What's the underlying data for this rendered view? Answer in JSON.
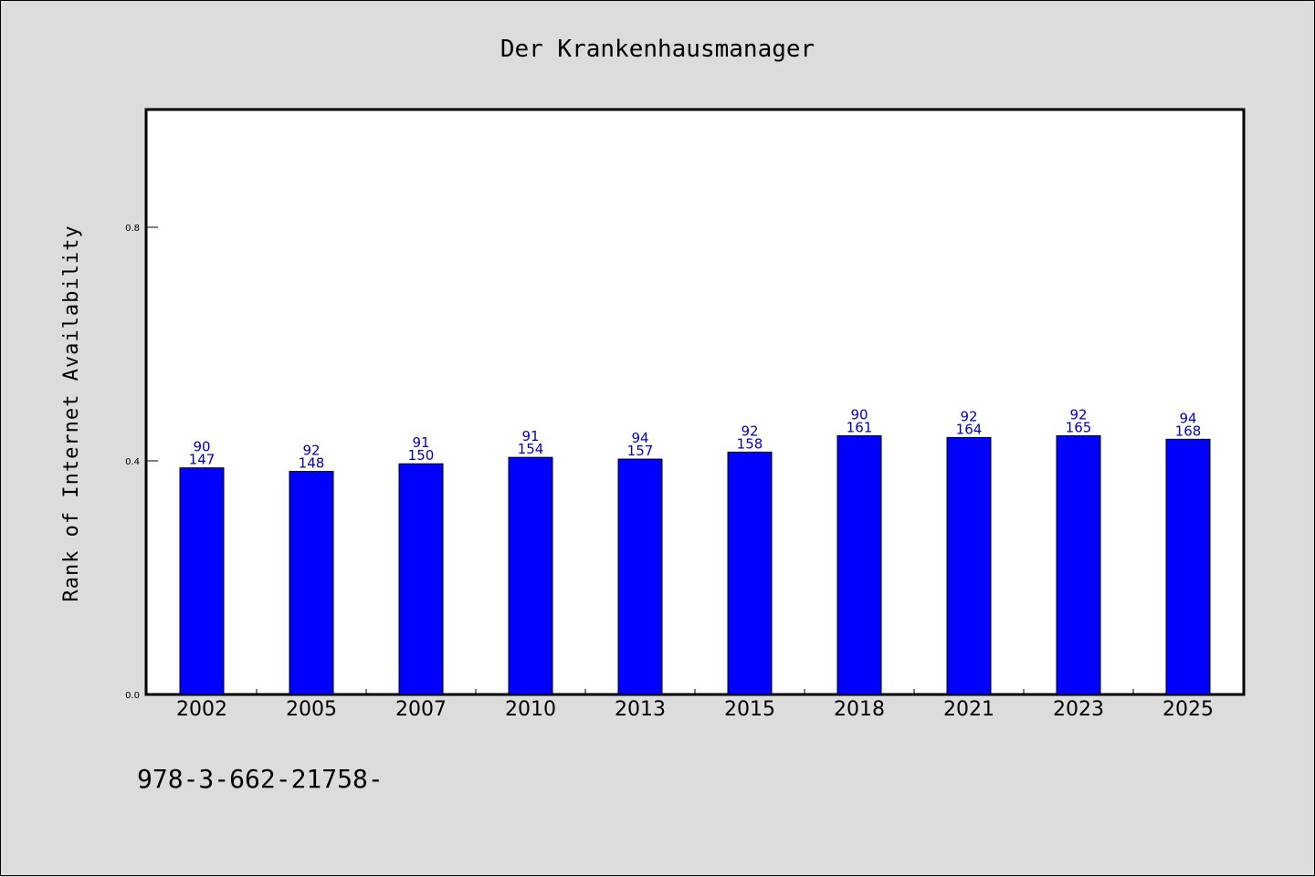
{
  "chart_data": {
    "type": "bar",
    "title": "Der Krankenhausmanager",
    "xlabel": "",
    "ylabel": "Rank of Internet Availability",
    "ylim": [
      0,
      1.0
    ],
    "yticks": [
      0.0,
      0.4,
      0.8
    ],
    "ytick_labels": [
      "0.0",
      "0.4",
      "0.8"
    ],
    "categories": [
      "2002",
      "2005",
      "2007",
      "2010",
      "2013",
      "2015",
      "2018",
      "2021",
      "2023",
      "2025"
    ],
    "values": [
      0.388,
      0.382,
      0.395,
      0.406,
      0.403,
      0.415,
      0.443,
      0.44,
      0.443,
      0.437
    ],
    "data_labels_top": [
      "90",
      "92",
      "91",
      "91",
      "94",
      "92",
      "90",
      "92",
      "92",
      "94"
    ],
    "data_labels_bottom": [
      "147",
      "148",
      "150",
      "154",
      "157",
      "158",
      "161",
      "164",
      "165",
      "168"
    ],
    "bar_color": "#0000ff",
    "label_color": "#0000cc",
    "grid": false,
    "legend": "none"
  },
  "footer": {
    "isbn": "978-3-662-21758-"
  }
}
